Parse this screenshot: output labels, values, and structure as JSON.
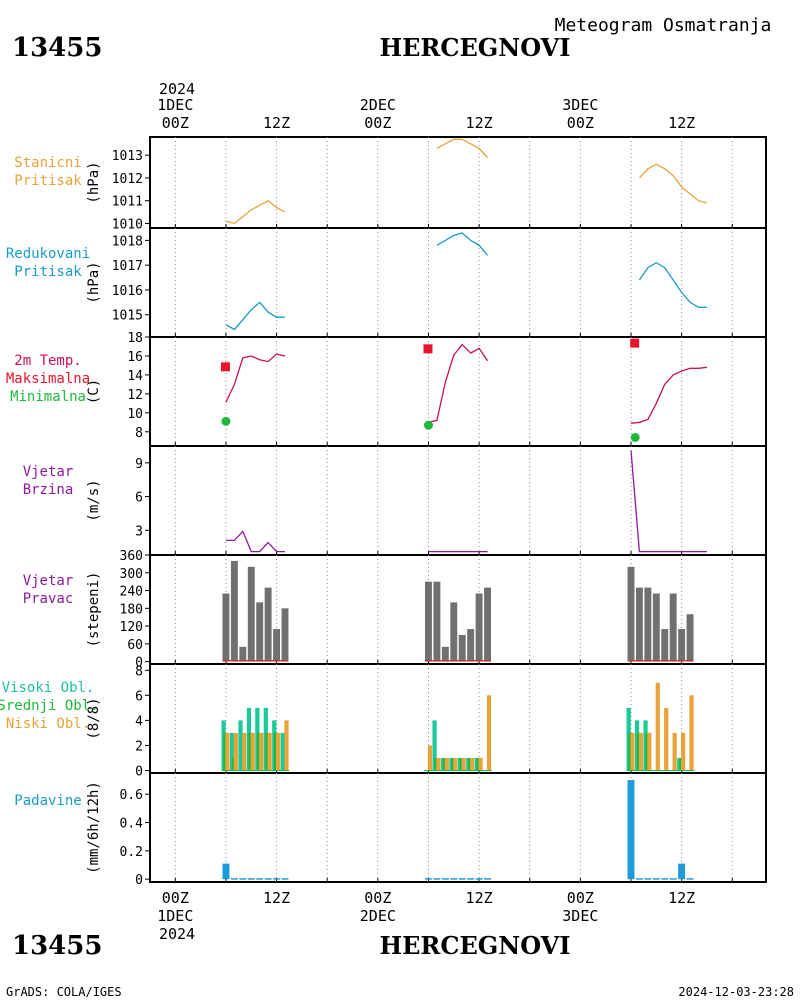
{
  "header": {
    "station_id": "13455",
    "station_name": "HERCEGNOVI",
    "subtitle": "Meteogram Osmatranja"
  },
  "footer": {
    "credit": "GrADS: COLA/IGES",
    "timestamp": "2024-12-03-23:28"
  },
  "time_axis": {
    "year_label": "2024",
    "top_labels": [
      {
        "text": "1DEC",
        "t": 0
      },
      {
        "text": "2DEC",
        "t": 24
      },
      {
        "text": "3DEC",
        "t": 48
      }
    ],
    "hour_labels": [
      {
        "text": "00Z",
        "t": 0
      },
      {
        "text": "12Z",
        "t": 12
      },
      {
        "text": "00Z",
        "t": 24
      },
      {
        "text": "12Z",
        "t": 36
      },
      {
        "text": "00Z",
        "t": 48
      },
      {
        "text": "12Z",
        "t": 60
      }
    ],
    "xlim_hours": [
      -3,
      70
    ]
  },
  "chart_data": [
    {
      "panel": "staniÄni-pritisak",
      "type": "line",
      "label_lines": [
        "Stanicni",
        "Pritisak"
      ],
      "label_color": "#e8a33a",
      "ylabel": "(hPa)",
      "ylim": [
        1009.8,
        1013.8
      ],
      "yticks": [
        1010,
        1011,
        1012,
        1013
      ],
      "series": [
        {
          "color": "#e8a33a",
          "segments": [
            {
              "x": [
                6,
                7,
                8,
                9,
                10,
                11,
                12,
                13
              ],
              "y": [
                1010.1,
                1010.0,
                1010.3,
                1010.6,
                1010.8,
                1011.0,
                1010.7,
                1010.5
              ]
            },
            {
              "x": [
                31,
                32,
                33,
                34,
                35,
                36,
                37
              ],
              "y": [
                1013.3,
                1013.5,
                1013.7,
                1013.7,
                1013.5,
                1013.3,
                1012.9
              ]
            },
            {
              "x": [
                55,
                56,
                57,
                58,
                59,
                60,
                61,
                62,
                63
              ],
              "y": [
                1012.0,
                1012.4,
                1012.6,
                1012.4,
                1012.1,
                1011.6,
                1011.3,
                1011.0,
                1010.9
              ]
            }
          ]
        }
      ]
    },
    {
      "panel": "redukovani-pritisak",
      "type": "line",
      "label_lines": [
        "Redukovani",
        "Pritisak"
      ],
      "label_color": "#1a9cc9",
      "ylabel": "(hPa)",
      "ylim": [
        1014.1,
        1018.5
      ],
      "yticks": [
        1015,
        1016,
        1017,
        1018
      ],
      "series": [
        {
          "color": "#1a9cc9",
          "segments": [
            {
              "x": [
                6,
                7,
                8,
                9,
                10,
                11,
                12,
                13
              ],
              "y": [
                1014.6,
                1014.4,
                1014.8,
                1015.2,
                1015.5,
                1015.1,
                1014.9,
                1014.9
              ]
            },
            {
              "x": [
                31,
                32,
                33,
                34,
                35,
                36,
                37
              ],
              "y": [
                1017.8,
                1018.0,
                1018.2,
                1018.3,
                1018.0,
                1017.8,
                1017.4
              ]
            },
            {
              "x": [
                55,
                56,
                57,
                58,
                59,
                60,
                61,
                62,
                63
              ],
              "y": [
                1016.4,
                1016.9,
                1017.1,
                1016.9,
                1016.4,
                1015.9,
                1015.5,
                1015.3,
                1015.3
              ]
            }
          ]
        }
      ]
    },
    {
      "panel": "2m-temp",
      "type": "line",
      "label_lines": [
        "2m Temp.",
        "Maksimalna",
        "Minimalna"
      ],
      "label_colors": [
        "#c8105a",
        "#e8142c",
        "#1db83c"
      ],
      "ylabel": "(C)",
      "ylim": [
        6.5,
        18
      ],
      "yticks": [
        8,
        10,
        12,
        14,
        16,
        18
      ],
      "series": [
        {
          "color": "#c8105a",
          "segments": [
            {
              "x": [
                6,
                7,
                8,
                9,
                10,
                11,
                12,
                13
              ],
              "y": [
                11.1,
                13.0,
                15.8,
                16.0,
                15.6,
                15.4,
                16.2,
                16.0
              ]
            },
            {
              "x": [
                30,
                31,
                32,
                33,
                34,
                35,
                36,
                37
              ],
              "y": [
                9.0,
                9.2,
                13.2,
                16.1,
                17.2,
                16.3,
                16.8,
                15.5
              ]
            },
            {
              "x": [
                54,
                55,
                56,
                57,
                58,
                59,
                60,
                61,
                62,
                63
              ],
              "y": [
                8.9,
                9.0,
                9.3,
                11.0,
                13.0,
                14.0,
                14.4,
                14.7,
                14.7,
                14.8
              ]
            }
          ]
        }
      ],
      "max_points": {
        "color": "#e8142c",
        "x": [
          6,
          30,
          54.5
        ],
        "y": [
          14.8,
          16.7,
          17.3
        ]
      },
      "min_points": {
        "color": "#1db83c",
        "x": [
          6,
          30,
          54.5
        ],
        "y": [
          9.1,
          8.7,
          7.4
        ]
      }
    },
    {
      "panel": "vjetar-brzina",
      "type": "line",
      "label_lines": [
        "Vjetar",
        "Brzina"
      ],
      "label_color": "#8e1a9e",
      "ylabel": "(m/s)",
      "ylim": [
        0.8,
        10.5
      ],
      "yticks": [
        3,
        6,
        9
      ],
      "series": [
        {
          "color": "#8e1a9e",
          "segments": [
            {
              "x": [
                6,
                7,
                8,
                9,
                10,
                11,
                12,
                13
              ],
              "y": [
                2.1,
                2.1,
                2.9,
                1.1,
                1.1,
                1.9,
                1.1,
                1.1
              ]
            },
            {
              "x": [
                30,
                37
              ],
              "y": [
                1.1,
                1.1
              ]
            },
            {
              "x": [
                54,
                55,
                63
              ],
              "y": [
                10.1,
                1.1,
                1.1
              ]
            }
          ]
        }
      ]
    },
    {
      "panel": "vjetar-pravac",
      "type": "bar",
      "label_lines": [
        "Vjetar",
        "Pravac"
      ],
      "label_color": "#8e1a9e",
      "ylabel": "(stepeni)",
      "ylim": [
        -8,
        360
      ],
      "yticks": [
        0,
        60,
        120,
        180,
        240,
        300,
        360
      ],
      "bar_color": "#707070",
      "bars": [
        {
          "x": 6,
          "v": 230
        },
        {
          "x": 7,
          "v": 340
        },
        {
          "x": 8,
          "v": 50
        },
        {
          "x": 9,
          "v": 320
        },
        {
          "x": 10,
          "v": 200
        },
        {
          "x": 11,
          "v": 250
        },
        {
          "x": 12,
          "v": 110
        },
        {
          "x": 13,
          "v": 180
        },
        {
          "x": 30,
          "v": 270
        },
        {
          "x": 31,
          "v": 270
        },
        {
          "x": 32,
          "v": 50
        },
        {
          "x": 33,
          "v": 200
        },
        {
          "x": 34,
          "v": 90
        },
        {
          "x": 35,
          "v": 110
        },
        {
          "x": 36,
          "v": 230
        },
        {
          "x": 37,
          "v": 250
        },
        {
          "x": 54,
          "v": 320
        },
        {
          "x": 55,
          "v": 250
        },
        {
          "x": 56,
          "v": 250
        },
        {
          "x": 57,
          "v": 230
        },
        {
          "x": 58,
          "v": 110
        },
        {
          "x": 59,
          "v": 230
        },
        {
          "x": 60,
          "v": 110
        },
        {
          "x": 61,
          "v": 160
        }
      ]
    },
    {
      "panel": "oblacnost",
      "type": "bar",
      "label_lines": [
        "Visoki Obl.",
        "Srednji Obl.",
        "Niski Obl."
      ],
      "label_colors": [
        "#1cbf9e",
        "#1db83c",
        "#e8a33a"
      ],
      "ylabel": "(8/8)",
      "ylim": [
        -0.2,
        8.5
      ],
      "yticks": [
        0,
        2,
        4,
        6,
        8
      ],
      "series": [
        {
          "name": "Visoki Obl.",
          "color": "#1cc99a",
          "x": [
            6,
            7,
            8,
            9,
            10,
            11,
            12,
            13,
            30,
            31,
            32,
            33,
            34,
            35,
            36,
            37,
            54,
            55,
            56,
            57,
            58,
            59,
            60,
            61
          ],
          "values": [
            4,
            3,
            4,
            5,
            5,
            5,
            4,
            3,
            0,
            4,
            1,
            1,
            1,
            1,
            1,
            0,
            5,
            4,
            4,
            0,
            0,
            0,
            1,
            0
          ]
        },
        {
          "name": "Srednji Obl.",
          "color": "#1db83c",
          "x": [
            6,
            7,
            8,
            9,
            10,
            11,
            12,
            13,
            30,
            31,
            32,
            33,
            34,
            35,
            36,
            37,
            54,
            55,
            56,
            57,
            58,
            59,
            60,
            61
          ],
          "values": [
            3,
            1,
            0,
            3,
            3,
            3,
            3,
            0,
            0,
            1,
            1,
            1,
            1,
            1,
            1,
            0,
            3,
            3,
            3,
            0,
            0,
            0,
            1,
            0
          ]
        },
        {
          "name": "Niski Obl.",
          "color": "#e8a33a",
          "x": [
            6,
            7,
            8,
            9,
            10,
            11,
            12,
            13,
            30,
            31,
            32,
            33,
            34,
            35,
            36,
            37,
            54,
            55,
            56,
            57,
            58,
            59,
            60,
            61
          ],
          "values": [
            3,
            3,
            3,
            3,
            3,
            3,
            3,
            4,
            2,
            1,
            1,
            1,
            1,
            1,
            1,
            6,
            3,
            3,
            3,
            7,
            5,
            3,
            3,
            6
          ]
        }
      ]
    },
    {
      "panel": "padavine",
      "type": "bar",
      "label_lines": [
        "Padavine"
      ],
      "label_color": "#1a9cc9",
      "ylabel": "(mm/6h/12h)",
      "ylim": [
        -0.02,
        0.75
      ],
      "yticks": [
        0,
        0.2,
        0.4,
        0.6
      ],
      "bar_color": "#1a9cd9",
      "bars": [
        {
          "x": 6,
          "v": 0.11
        },
        {
          "x": 7,
          "v": 0.005
        },
        {
          "x": 8,
          "v": 0.005
        },
        {
          "x": 9,
          "v": 0.005
        },
        {
          "x": 10,
          "v": 0.005
        },
        {
          "x": 11,
          "v": 0.005
        },
        {
          "x": 12,
          "v": 0.005
        },
        {
          "x": 13,
          "v": 0.005
        },
        {
          "x": 30,
          "v": 0.005
        },
        {
          "x": 31,
          "v": 0.005
        },
        {
          "x": 32,
          "v": 0.005
        },
        {
          "x": 33,
          "v": 0.005
        },
        {
          "x": 34,
          "v": 0.005
        },
        {
          "x": 35,
          "v": 0.005
        },
        {
          "x": 36,
          "v": 0.005
        },
        {
          "x": 37,
          "v": 0.005
        },
        {
          "x": 54,
          "v": 0.7
        },
        {
          "x": 55,
          "v": 0.005
        },
        {
          "x": 56,
          "v": 0.005
        },
        {
          "x": 57,
          "v": 0.005
        },
        {
          "x": 58,
          "v": 0.005
        },
        {
          "x": 59,
          "v": 0.005
        },
        {
          "x": 60,
          "v": 0.11
        },
        {
          "x": 61,
          "v": 0.005
        }
      ]
    }
  ]
}
